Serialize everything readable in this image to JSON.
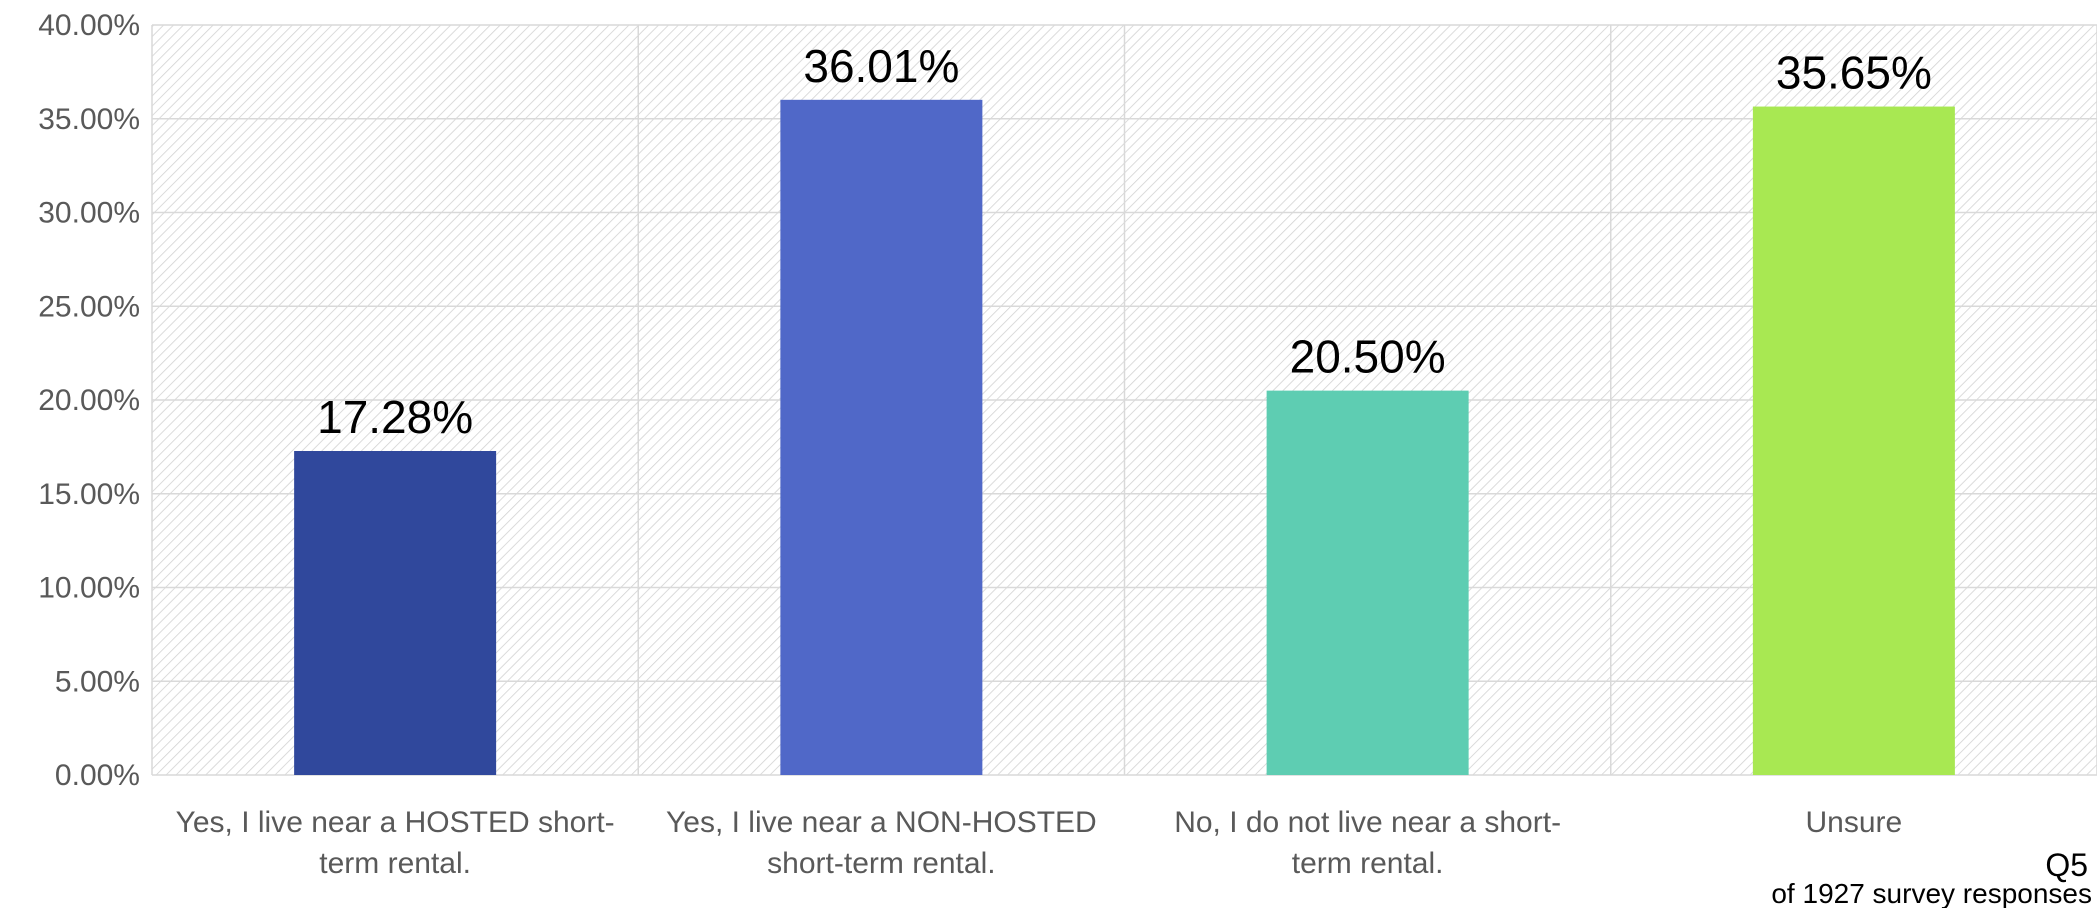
{
  "chart_data": {
    "type": "bar",
    "categories": [
      [
        "Yes, I live near a HOSTED short-",
        "term rental."
      ],
      [
        "Yes, I live near a NON-HOSTED",
        "short-term rental."
      ],
      [
        "No, I do not live near a short-",
        "term rental."
      ],
      [
        "Unsure"
      ]
    ],
    "values": [
      17.28,
      36.01,
      20.5,
      35.65
    ],
    "data_labels": [
      "17.28%",
      "36.01%",
      "20.50%",
      "35.65%"
    ],
    "bar_colors": [
      "#30489c",
      "#5068c8",
      "#5ecdb2",
      "#a8e852"
    ],
    "ylim": [
      0,
      40
    ],
    "y_ticks": [
      0,
      5,
      10,
      15,
      20,
      25,
      30,
      35,
      40
    ],
    "y_tick_labels": [
      "0.00%",
      "5.00%",
      "10.00%",
      "15.00%",
      "20.00%",
      "25.00%",
      "30.00%",
      "35.00%",
      "40.00%"
    ],
    "grid": true,
    "title": "",
    "xlabel": "",
    "ylabel": ""
  },
  "note": {
    "question": "Q5",
    "responses": "of 1927 survey responses"
  },
  "colors": {
    "gridline": "#d9d9d9",
    "hatch": "#cfcfcf",
    "axis_text": "#595959"
  }
}
